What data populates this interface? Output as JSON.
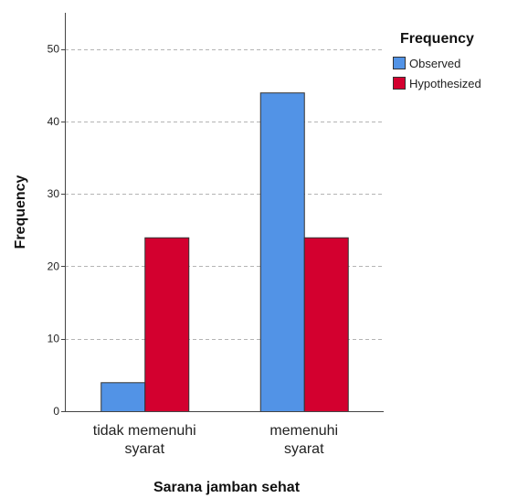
{
  "chart_data": {
    "type": "bar",
    "categories": [
      [
        "tidak memenuhi",
        "syarat"
      ],
      [
        "memenuhi",
        "syarat"
      ]
    ],
    "series": [
      {
        "name": "Observed",
        "values": [
          4,
          44
        ],
        "color": "#5293e6"
      },
      {
        "name": "Hypothesized",
        "values": [
          24,
          24
        ],
        "color": "#d3002f"
      }
    ],
    "xlabel": "Sarana jamban sehat",
    "ylabel": "Frequency",
    "ylim": [
      0,
      55
    ],
    "yticks": [
      0,
      10,
      20,
      30,
      40,
      50
    ],
    "grid": true,
    "legend_title": "Frequency",
    "legend_position": "top-right"
  }
}
